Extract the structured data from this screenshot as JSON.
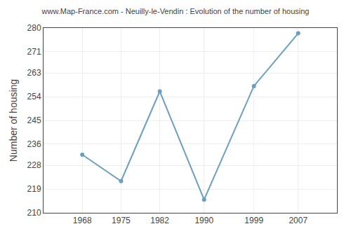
{
  "chart_data": {
    "type": "line",
    "title": "www.Map-France.com - Neuilly-le-Vendin : Evolution of the number of housing",
    "y_label": "Number of housing",
    "x": [
      1968,
      1975,
      1982,
      1990,
      1999,
      2007
    ],
    "values": [
      232,
      222,
      256,
      215,
      258,
      278
    ],
    "color": "#6a9fc0",
    "marker": "circle",
    "xlim": [
      1961,
      2014
    ],
    "xticks": [
      1968,
      1975,
      1982,
      1990,
      1999,
      2007
    ],
    "ylim": [
      210,
      280
    ],
    "yticks": [
      210,
      219,
      228,
      236,
      245,
      254,
      263,
      271,
      280
    ],
    "grid": true
  }
}
